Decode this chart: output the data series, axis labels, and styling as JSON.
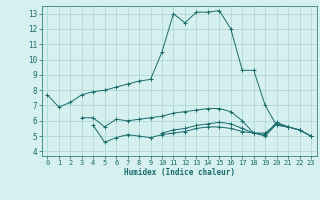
{
  "xlabel": "Humidex (Indice chaleur)",
  "background_color": "#d6f0f0",
  "grid_color": "#b0d8d8",
  "line_color": "#1a6b6b",
  "xlim": [
    -0.5,
    23.5
  ],
  "ylim": [
    3.7,
    13.5
  ],
  "yticks": [
    4,
    5,
    6,
    7,
    8,
    9,
    10,
    11,
    12,
    13
  ],
  "xticks": [
    0,
    1,
    2,
    3,
    4,
    5,
    6,
    7,
    8,
    9,
    10,
    11,
    12,
    13,
    14,
    15,
    16,
    17,
    18,
    19,
    20,
    21,
    22,
    23
  ],
  "series": [
    [
      7.7,
      6.9,
      7.2,
      7.7,
      7.9,
      8.0,
      8.2,
      8.4,
      8.6,
      8.7,
      10.5,
      13.0,
      12.4,
      13.1,
      13.1,
      13.2,
      12.0,
      9.3,
      9.3,
      7.0,
      5.7,
      5.6,
      5.4,
      5.0
    ],
    [
      null,
      null,
      null,
      6.2,
      6.2,
      5.6,
      6.1,
      6.0,
      6.1,
      6.2,
      6.3,
      6.5,
      6.6,
      6.7,
      6.8,
      6.8,
      6.6,
      6.0,
      5.2,
      5.2,
      5.8,
      5.6,
      null,
      null
    ],
    [
      null,
      null,
      null,
      null,
      5.7,
      4.6,
      4.9,
      5.1,
      5.0,
      4.9,
      5.1,
      5.2,
      5.3,
      5.5,
      5.6,
      5.6,
      5.5,
      5.3,
      5.2,
      5.1,
      5.9,
      5.6,
      5.4,
      5.0
    ],
    [
      null,
      null,
      null,
      null,
      null,
      null,
      null,
      null,
      null,
      null,
      5.2,
      5.4,
      5.5,
      5.7,
      5.8,
      5.9,
      5.8,
      5.5,
      5.2,
      5.0,
      5.8,
      5.6,
      5.4,
      5.0
    ]
  ]
}
